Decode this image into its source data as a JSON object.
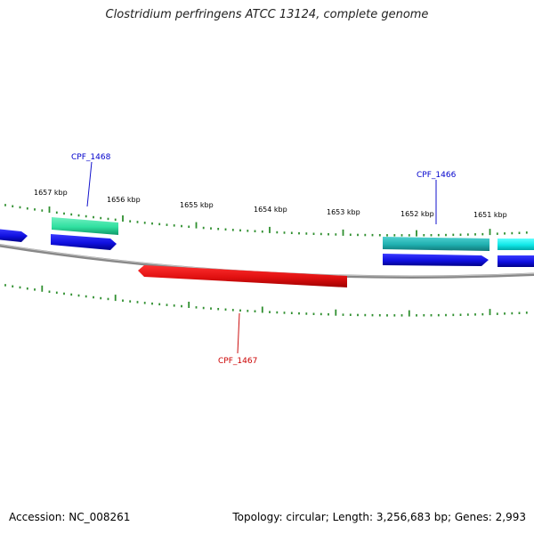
{
  "title": "Clostridium perfringens ATCC 13124, complete genome",
  "footer": {
    "accession": "Accession: NC_008261",
    "summary": "Topology: circular; Length: 3,256,683 bp; Genes: 2,993"
  },
  "colors": {
    "backbone": "#888888",
    "tick": "#2f8f2f",
    "forward_gene": "#1010e0",
    "reverse_gene": "#e01010",
    "teal_gene": "#20b0b0",
    "cyan_gene": "#10e8e8",
    "mint_gene": "#30e0a0",
    "forward_label": "#0000cc",
    "reverse_label": "#cc0000"
  },
  "scale": {
    "unit": "kbp",
    "marks": [
      {
        "kbp": 1657,
        "label": "1657 kbp"
      },
      {
        "kbp": 1656,
        "label": "1656 kbp"
      },
      {
        "kbp": 1655,
        "label": "1655 kbp"
      },
      {
        "kbp": 1654,
        "label": "1654 kbp"
      },
      {
        "kbp": 1653,
        "label": "1653 kbp"
      },
      {
        "kbp": 1652,
        "label": "1652 kbp"
      },
      {
        "kbp": 1651,
        "label": "1651 kbp"
      }
    ]
  },
  "gene_labels": {
    "cpf_1468": "CPF_1468",
    "cpf_1466": "CPF_1466",
    "cpf_1467": "CPF_1467"
  }
}
